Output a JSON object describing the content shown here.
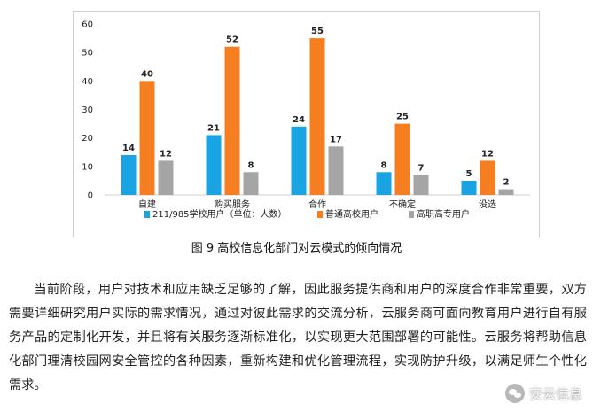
{
  "chart_data": {
    "type": "bar",
    "categories": [
      "自建",
      "购买服务",
      "合作",
      "不确定",
      "没选"
    ],
    "series": [
      {
        "name": "211/985学校用户（单位：人数）",
        "values": [
          14,
          21,
          24,
          8,
          5
        ],
        "color": "#1aa4e4"
      },
      {
        "name": "普通高校用户",
        "values": [
          40,
          52,
          55,
          25,
          12
        ],
        "color": "#f57f20"
      },
      {
        "name": "高职高专用户",
        "values": [
          12,
          8,
          17,
          7,
          2
        ],
        "color": "#a5a5a5"
      }
    ],
    "ylim": [
      0,
      60
    ],
    "yticks": [
      0,
      10,
      20,
      30,
      40,
      50,
      60
    ],
    "grid": false,
    "legend": "bottom"
  },
  "caption": "图 9  高校信息化部门对云模式的倾向情况",
  "body_text": "当前阶段，用户对技术和应用缺乏足够的了解，因此服务提供商和用户的深度合作非常重要，双方需要详细研究用户实际的需求情况，通过对彼此需求的交流分析，云服务商可面向教育用户进行自有服务产品的定制化开发，并且将有关服务逐渐标准化，以实现更大范围部署的可能性。云服务将帮助信息化部门理清校园网安全管控的各种因素，重新构建和优化管理流程，实现防护升级，以满足师生个性化需求。",
  "watermark": "安云信息"
}
